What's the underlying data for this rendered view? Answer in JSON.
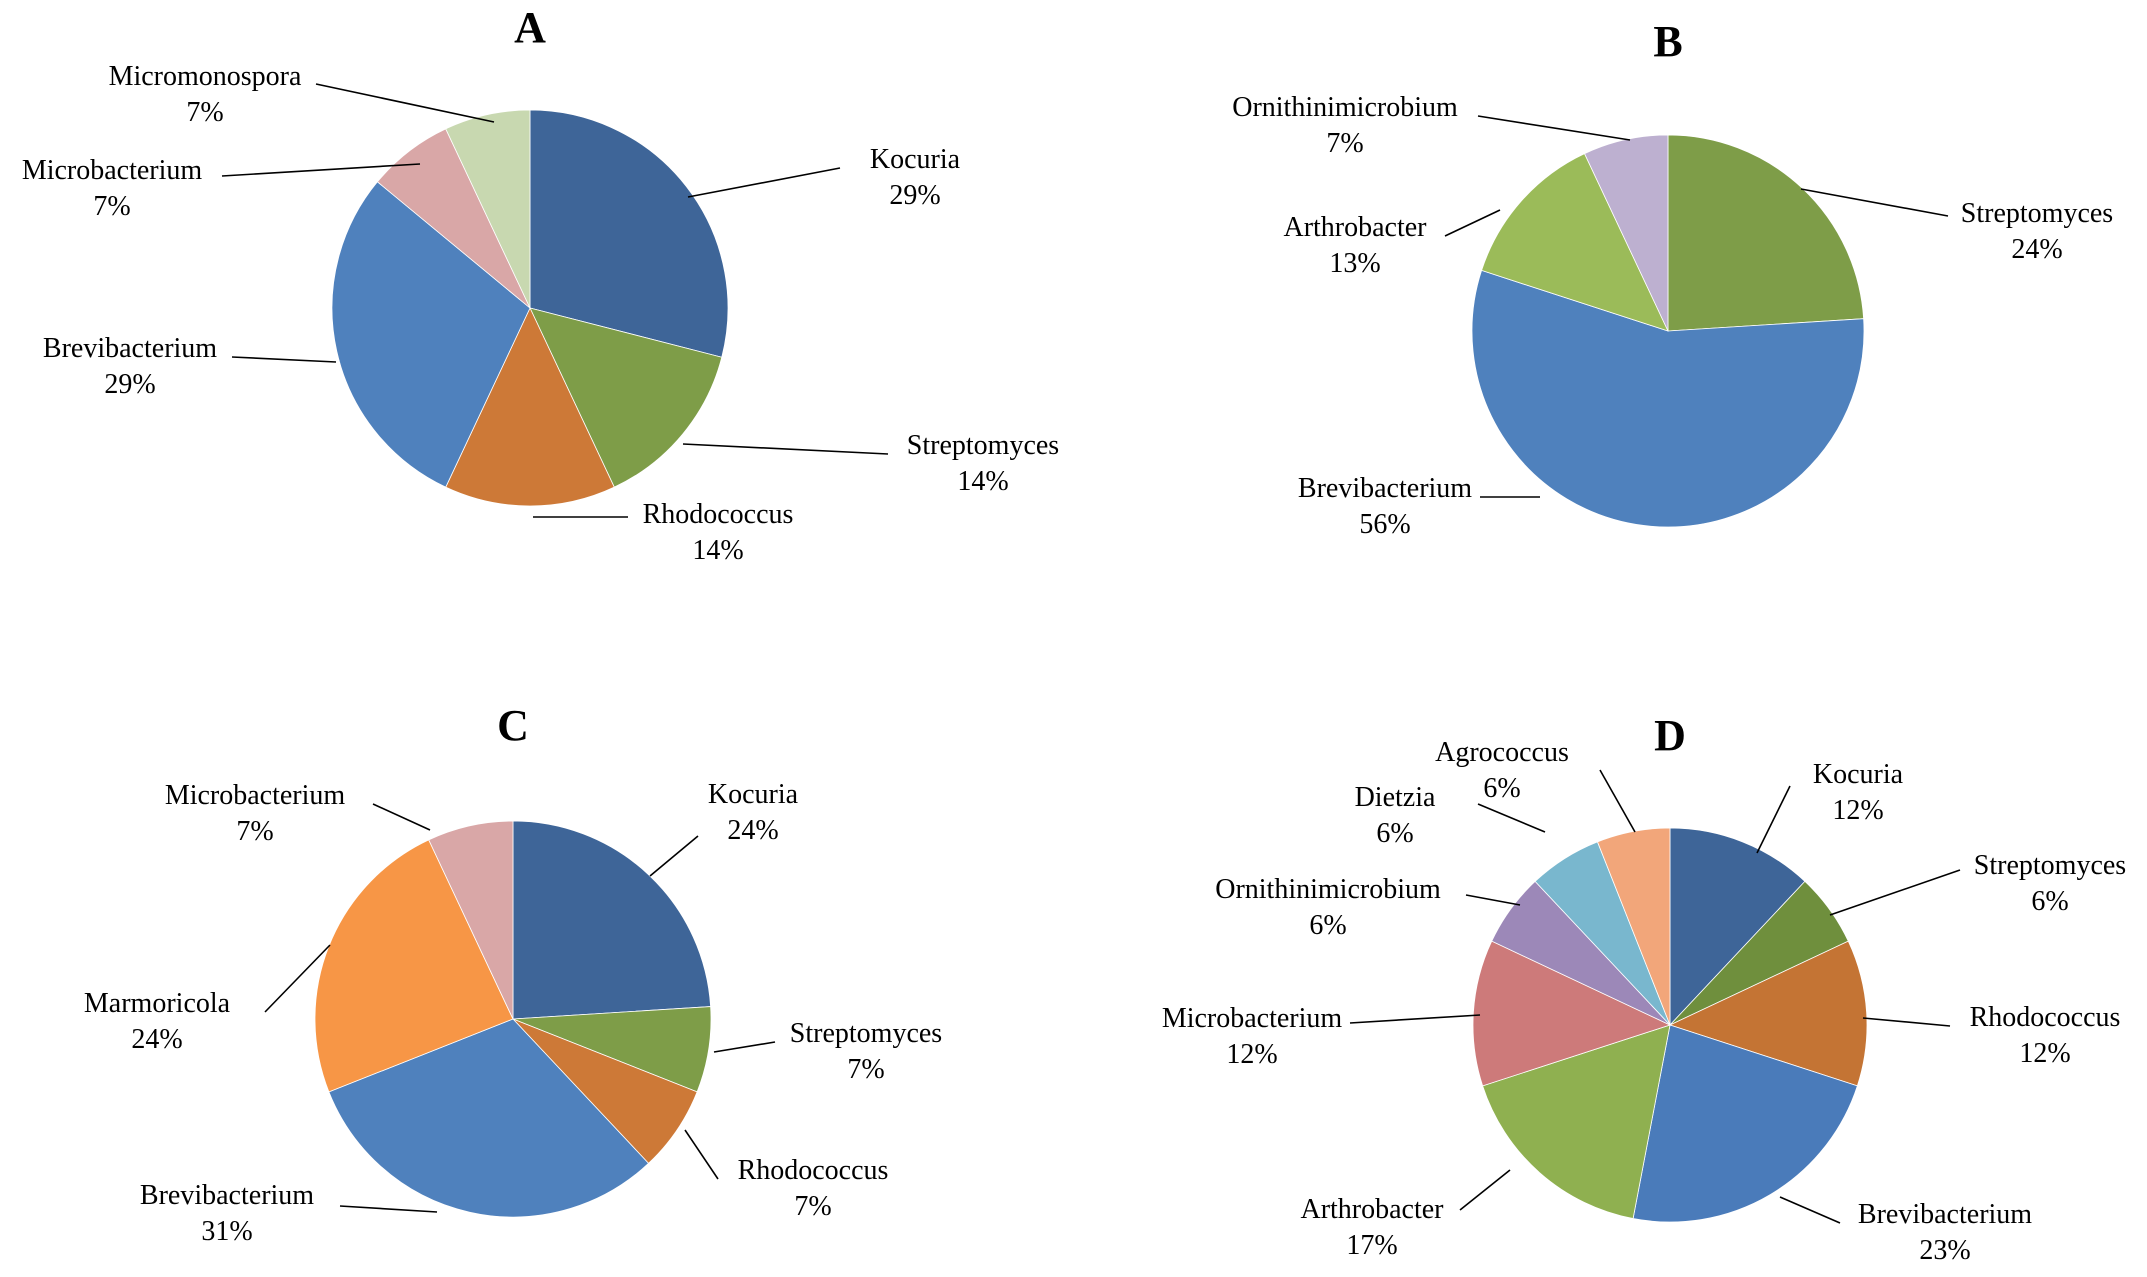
{
  "chart_data": [
    {
      "type": "pie",
      "title": "A",
      "slices": [
        {
          "label": "Kocuria",
          "value": 29,
          "percent_label": "29%",
          "color": "#3E6598"
        },
        {
          "label": "Streptomyces",
          "value": 14,
          "percent_label": "14%",
          "color": "#7E9D48"
        },
        {
          "label": "Rhodococcus",
          "value": 14,
          "percent_label": "14%",
          "color": "#CD7937"
        },
        {
          "label": "Brevibacterium",
          "value": 29,
          "percent_label": "29%",
          "color": "#4F81BD"
        },
        {
          "label": "Microbacterium",
          "value": 7,
          "percent_label": "7%",
          "color": "#D9A7A7"
        },
        {
          "label": "Micromonospora",
          "value": 7,
          "percent_label": "7%",
          "color": "#C8D8B0"
        }
      ]
    },
    {
      "type": "pie",
      "title": "B",
      "slices": [
        {
          "label": "Streptomyces",
          "value": 24,
          "percent_label": "24%",
          "color": "#7E9D48"
        },
        {
          "label": "Brevibacterium",
          "value": 56,
          "percent_label": "56%",
          "color": "#4F81BD"
        },
        {
          "label": "Arthrobacter",
          "value": 13,
          "percent_label": "13%",
          "color": "#9BBB59"
        },
        {
          "label": "Ornithinimicrobium",
          "value": 7,
          "percent_label": "7%",
          "color": "#BDB0D0"
        }
      ]
    },
    {
      "type": "pie",
      "title": "C",
      "slices": [
        {
          "label": "Kocuria",
          "value": 24,
          "percent_label": "24%",
          "color": "#3E6598"
        },
        {
          "label": "Streptomyces",
          "value": 7,
          "percent_label": "7%",
          "color": "#7E9D48"
        },
        {
          "label": "Rhodococcus",
          "value": 7,
          "percent_label": "7%",
          "color": "#CD7937"
        },
        {
          "label": "Brevibacterium",
          "value": 31,
          "percent_label": "31%",
          "color": "#4F81BD"
        },
        {
          "label": "Marmoricola",
          "value": 24,
          "percent_label": "24%",
          "color": "#F79646"
        },
        {
          "label": "Microbacterium",
          "value": 7,
          "percent_label": "7%",
          "color": "#D9A7A7"
        }
      ]
    },
    {
      "type": "pie",
      "title": "D",
      "slices": [
        {
          "label": "Kocuria",
          "value": 12,
          "percent_label": "12%",
          "color": "#3E6598"
        },
        {
          "label": "Streptomyces",
          "value": 6,
          "percent_label": "6%",
          "color": "#6F8F3D"
        },
        {
          "label": "Rhodococcus",
          "value": 12,
          "percent_label": "12%",
          "color": "#C47434"
        },
        {
          "label": "Brevibacterium",
          "value": 23,
          "percent_label": "23%",
          "color": "#4A7BBA"
        },
        {
          "label": "Arthrobacter",
          "value": 17,
          "percent_label": "17%",
          "color": "#8FB050"
        },
        {
          "label": "Microbacterium",
          "value": 12,
          "percent_label": "12%",
          "color": "#CD7A7A"
        },
        {
          "label": "Ornithinimicrobium",
          "value": 6,
          "percent_label": "6%",
          "color": "#9C88B8"
        },
        {
          "label": "Dietzia",
          "value": 6,
          "percent_label": "6%",
          "color": "#79B7CE"
        },
        {
          "label": "Agrococcus",
          "value": 6,
          "percent_label": "6%",
          "color": "#F2A67A"
        }
      ]
    }
  ]
}
